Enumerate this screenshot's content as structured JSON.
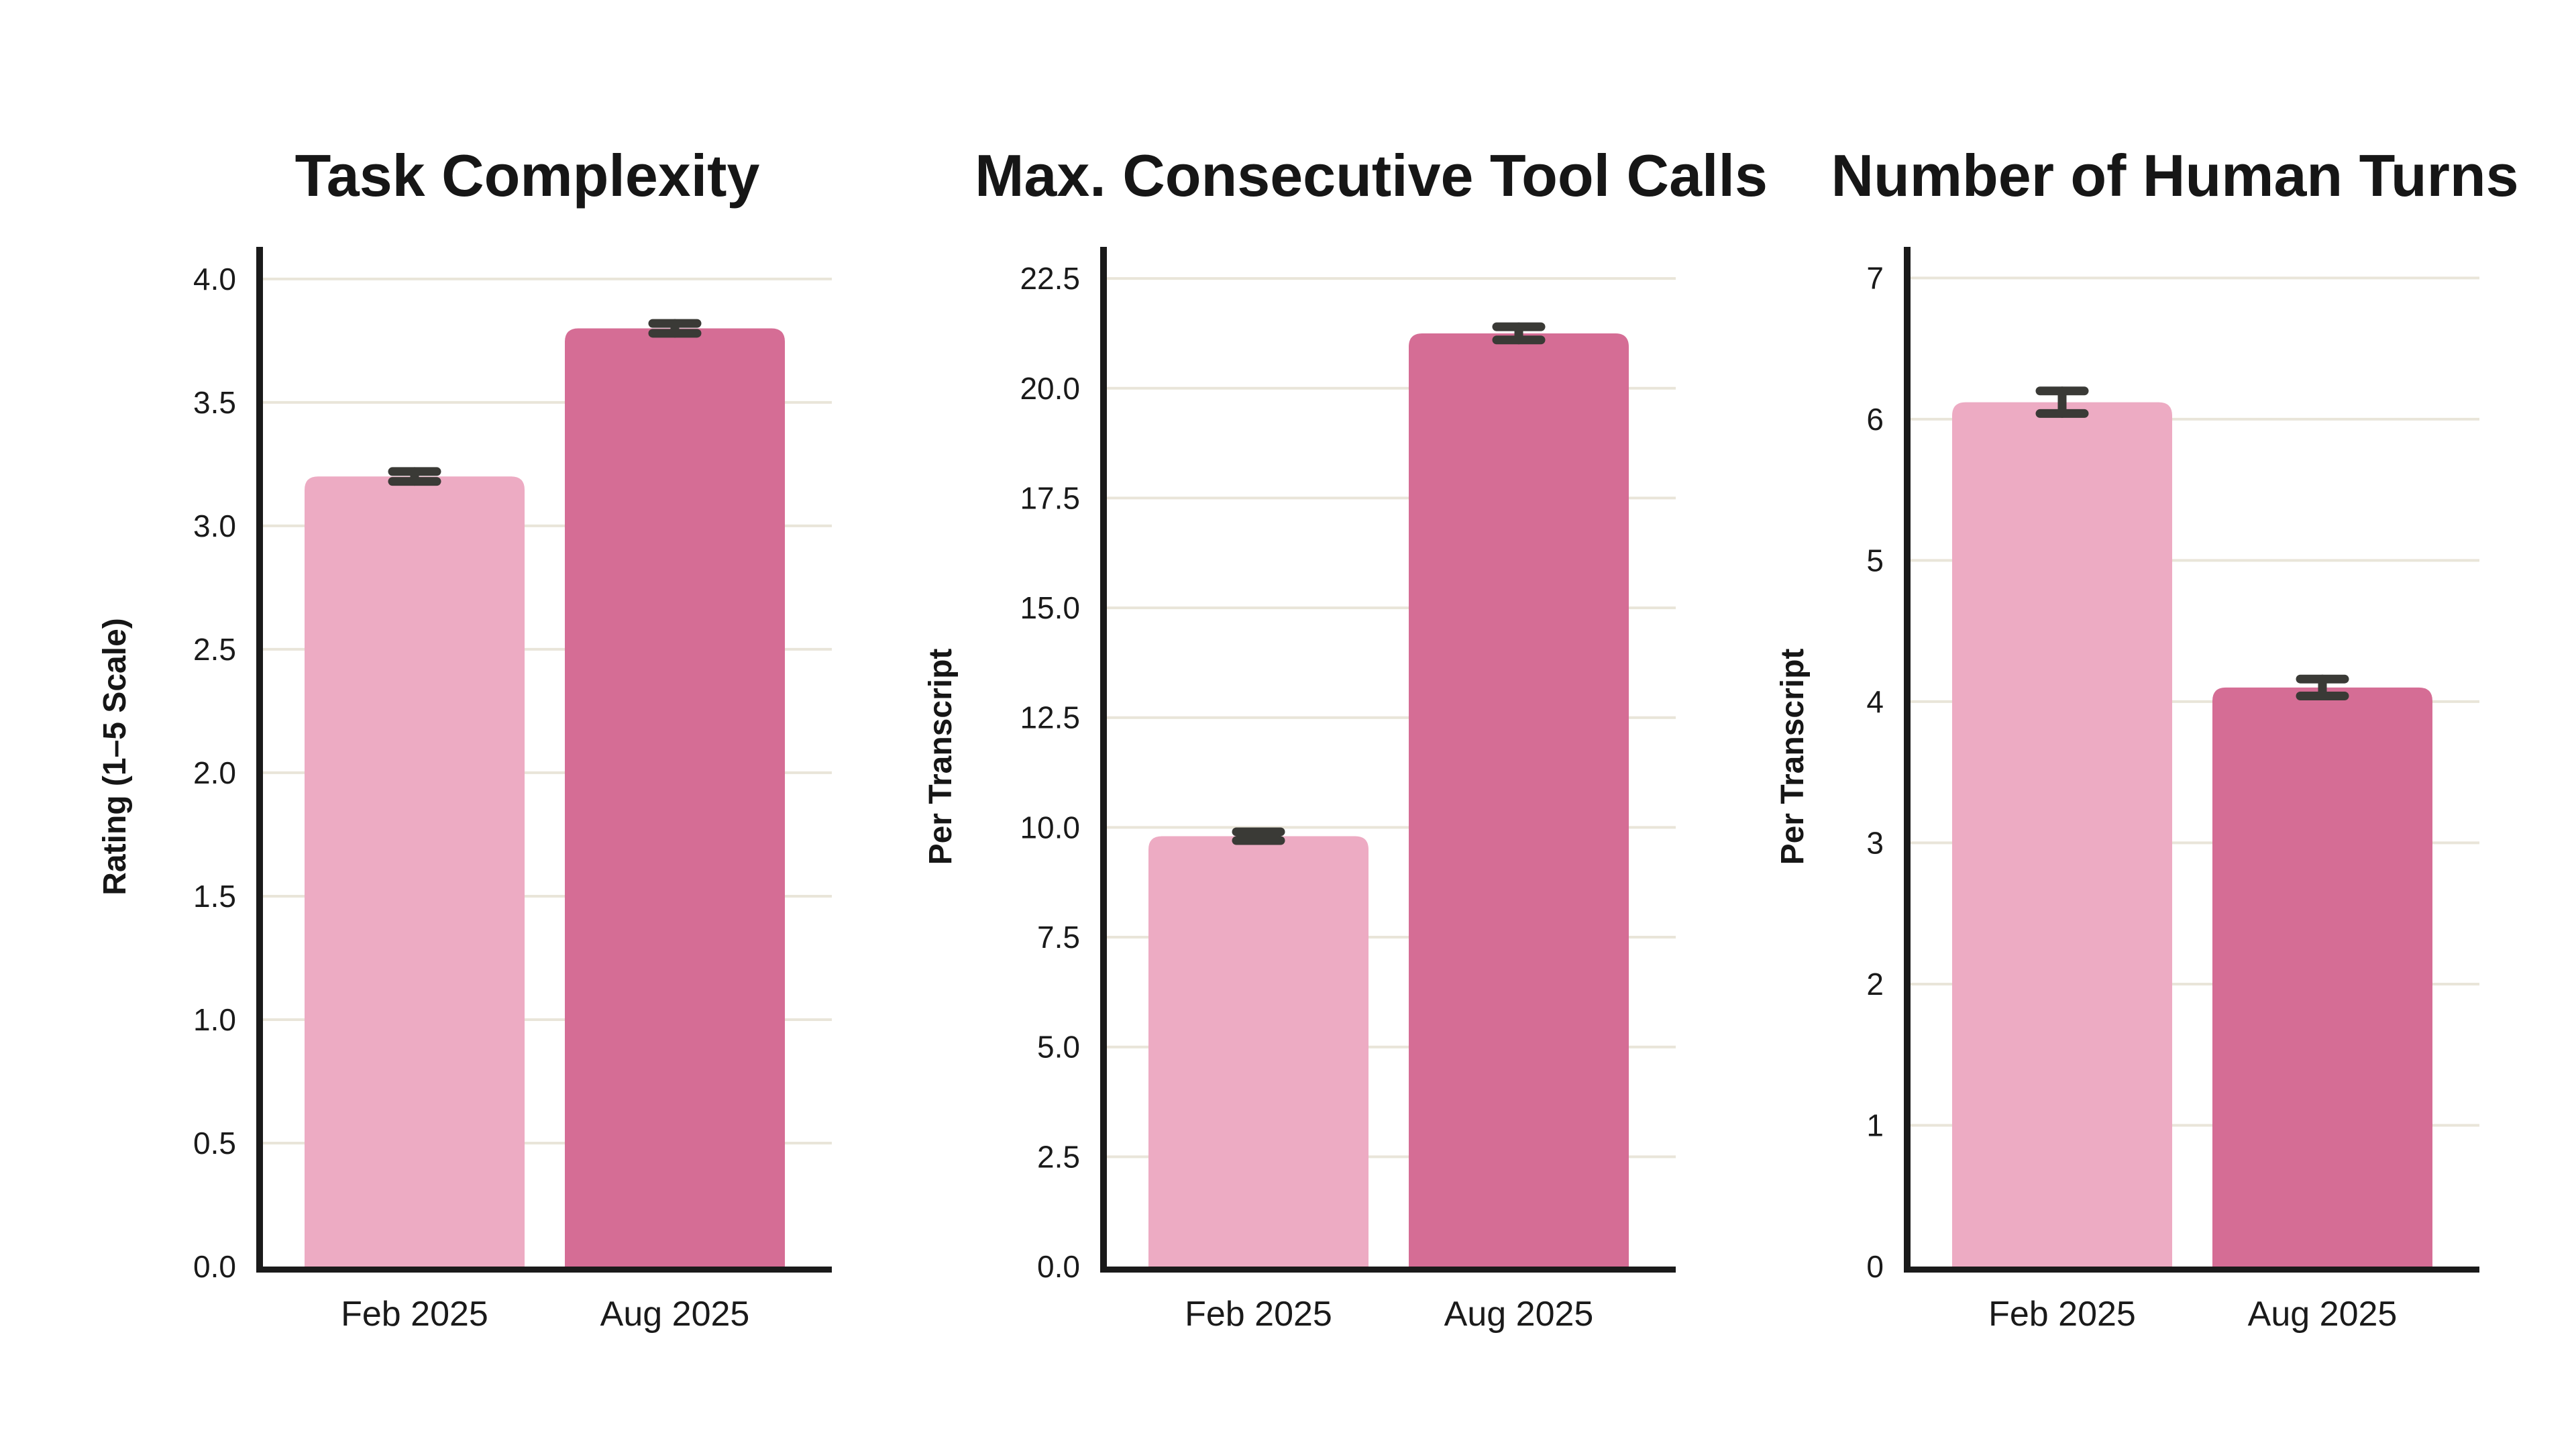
{
  "figure": {
    "background": "#ffffff"
  },
  "colors": {
    "bar_feb": "#edabc3",
    "bar_aug": "#d56d95",
    "error_bar": "#3a3a36",
    "gridline": "#e9e5d9",
    "axis_spine": "#1a1a1a",
    "text": "#161616"
  },
  "chart_data": [
    {
      "type": "bar",
      "title": "Task Complexity",
      "xlabel": "",
      "ylabel": "Rating (1–5 Scale)",
      "categories": [
        "Feb 2025",
        "Aug 2025"
      ],
      "values": [
        3.2,
        3.8
      ],
      "errors": [
        0.02,
        0.02
      ],
      "ytick_labels": [
        "0.0",
        "0.5",
        "1.0",
        "1.5",
        "2.0",
        "2.5",
        "3.0",
        "3.5",
        "4.0"
      ],
      "ytick_values": [
        0.0,
        0.5,
        1.0,
        1.5,
        2.0,
        2.5,
        3.0,
        3.5,
        4.0
      ],
      "ylim": [
        0,
        4.13
      ],
      "grid": "horizontal",
      "legend": "none"
    },
    {
      "type": "bar",
      "title": "Max. Consecutive Tool Calls",
      "xlabel": "",
      "ylabel": "Per Transcript",
      "categories": [
        "Feb 2025",
        "Aug 2025"
      ],
      "values": [
        9.8,
        21.25
      ],
      "errors": [
        0.1,
        0.15
      ],
      "ytick_labels": [
        "0.0",
        "2.5",
        "5.0",
        "7.5",
        "10.0",
        "12.5",
        "15.0",
        "17.5",
        "20.0",
        "22.5"
      ],
      "ytick_values": [
        0.0,
        2.5,
        5.0,
        7.5,
        10.0,
        12.5,
        15.0,
        17.5,
        20.0,
        22.5
      ],
      "ylim": [
        0,
        23.22
      ],
      "grid": "horizontal",
      "legend": "none"
    },
    {
      "type": "bar",
      "title": "Number of Human Turns",
      "xlabel": "",
      "ylabel": "Per Transcript",
      "categories": [
        "Feb 2025",
        "Aug 2025"
      ],
      "values": [
        6.12,
        4.1
      ],
      "errors": [
        0.08,
        0.06
      ],
      "ytick_labels": [
        "0",
        "1",
        "2",
        "3",
        "4",
        "5",
        "6",
        "7"
      ],
      "ytick_values": [
        0,
        1,
        2,
        3,
        4,
        5,
        6,
        7
      ],
      "ylim": [
        0,
        7.22
      ],
      "grid": "horizontal",
      "legend": "none"
    }
  ]
}
